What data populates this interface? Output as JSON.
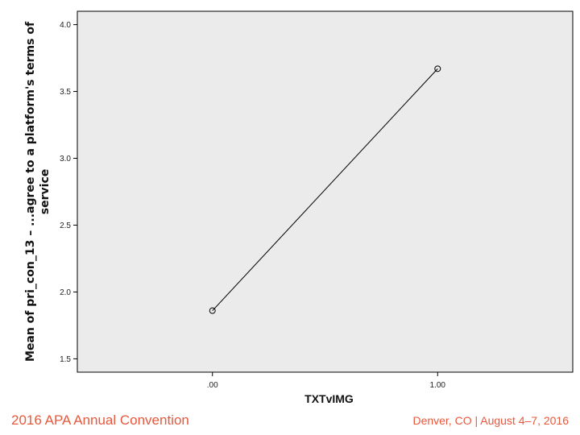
{
  "chart_data": {
    "type": "line",
    "x": [
      0.0,
      1.0
    ],
    "x_tick_labels": [
      ".00",
      "1.00"
    ],
    "series": [
      {
        "values": [
          1.86,
          3.67
        ]
      }
    ],
    "y_ticks": [
      1.5,
      2.0,
      2.5,
      3.0,
      3.5,
      4.0
    ],
    "y_tick_labels": [
      "1.5",
      "2.0",
      "2.5",
      "3.0",
      "3.5",
      "4.0"
    ],
    "ylim": [
      1.4,
      4.1
    ],
    "xlim": [
      -0.6,
      1.6
    ],
    "xlabel": "TXTvIMG",
    "ylabel_line1": "Mean of pri_con_13 – ...agree to a platform's terms of",
    "ylabel_line2": "service",
    "grid": false,
    "plot_background": "#ebebeb",
    "line_color": "#000000"
  },
  "footer": {
    "left": "2016 APA Annual Convention",
    "right": "Denver, CO | August 4–7, 2016",
    "accent_color": "#e8583c"
  }
}
